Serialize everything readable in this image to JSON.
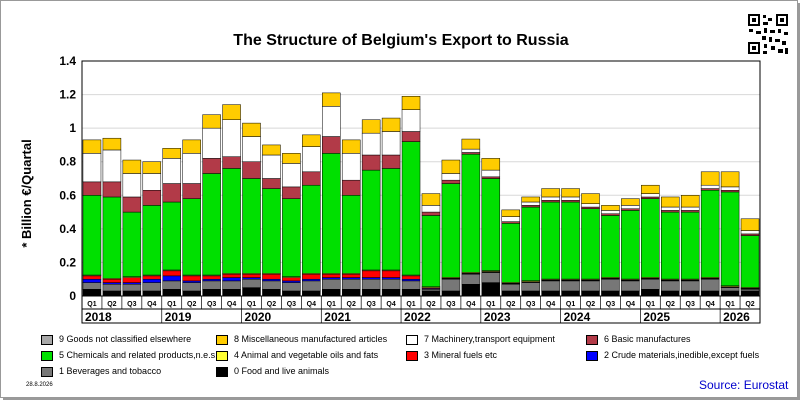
{
  "title": "The Structure of Belgium's Export to Russia",
  "date_stamp": "28.8.2026",
  "source": "Source: Eurostat",
  "colors": {
    "c9": "#a8a8a8",
    "c8": "#ffcc00",
    "c7": "#ffffff",
    "c6": "#b23a48",
    "c5": "#00e000",
    "c4": "#ffff33",
    "c3": "#ff0000",
    "c2": "#0000ff",
    "c1": "#777777",
    "c0": "#000000"
  },
  "legend": [
    {
      "key": "c9",
      "label": "9 Goods not classified elsewhere"
    },
    {
      "key": "c8",
      "label": "8 Miscellaneous manufactured articles"
    },
    {
      "key": "c7",
      "label": "7 Machinery,transport equipment"
    },
    {
      "key": "c6",
      "label": "6 Basic manufactures"
    },
    {
      "key": "c5",
      "label": "5 Chemicals and related products,n.e.s."
    },
    {
      "key": "c4",
      "label": "4 Animal and vegetable oils and fats"
    },
    {
      "key": "c3",
      "label": "3 Mineral fuels etc"
    },
    {
      "key": "c2",
      "label": "2 Crude materials,inedible,except fuels"
    },
    {
      "key": "c1",
      "label": "1 Beverages and tobacco"
    },
    {
      "key": "c0",
      "label": "0 Food and live animals"
    }
  ],
  "chart_data": {
    "type": "bar",
    "stacked": true,
    "title": "The Structure of Belgium's Export to Russia",
    "ylabel": "* Billion €/Quartal",
    "ylim": [
      0,
      1.4
    ],
    "yticks": [
      "0",
      "0.2",
      "0.4",
      "0.6",
      "0.8",
      "1",
      "1.2",
      "1.4"
    ],
    "years": [
      "2018",
      "2019",
      "2020",
      "2021",
      "2022",
      "2023",
      "2024",
      "2025",
      "2026"
    ],
    "categories": [
      "Q1",
      "Q2",
      "Q3",
      "Q4",
      "Q1",
      "Q2",
      "Q3",
      "Q4",
      "Q1",
      "Q2",
      "Q3",
      "Q4",
      "Q1",
      "Q2",
      "Q3",
      "Q4",
      "Q1",
      "Q2",
      "Q3",
      "Q4",
      "Q1",
      "Q2",
      "Q3",
      "Q4",
      "Q1",
      "Q2",
      "Q3",
      "Q4",
      "Q1",
      "Q2",
      "Q3",
      "Q4",
      "Q1",
      "Q2"
    ],
    "series": [
      {
        "key": "c0",
        "name": "0 Food and live animals",
        "values": [
          0.04,
          0.03,
          0.03,
          0.03,
          0.04,
          0.03,
          0.04,
          0.04,
          0.05,
          0.04,
          0.03,
          0.03,
          0.04,
          0.04,
          0.04,
          0.04,
          0.04,
          0.03,
          0.03,
          0.07,
          0.08,
          0.03,
          0.03,
          0.03,
          0.03,
          0.03,
          0.03,
          0.03,
          0.04,
          0.03,
          0.03,
          0.03,
          0.03,
          0.03
        ]
      },
      {
        "key": "c1",
        "name": "1 Beverages and tobacco",
        "values": [
          0.04,
          0.04,
          0.04,
          0.05,
          0.05,
          0.05,
          0.05,
          0.05,
          0.05,
          0.05,
          0.05,
          0.06,
          0.06,
          0.06,
          0.06,
          0.06,
          0.05,
          0.01,
          0.07,
          0.06,
          0.06,
          0.04,
          0.05,
          0.06,
          0.06,
          0.06,
          0.07,
          0.06,
          0.06,
          0.06,
          0.06,
          0.07,
          0.02,
          0.01
        ]
      },
      {
        "key": "c2",
        "name": "2 Crude materials,inedible,except fuels",
        "values": [
          0.02,
          0.01,
          0.01,
          0.02,
          0.03,
          0.01,
          0.01,
          0.02,
          0.01,
          0.01,
          0.01,
          0.01,
          0.01,
          0.01,
          0.01,
          0.01,
          0.01,
          0.005,
          0.003,
          0.003,
          0.003,
          0.003,
          0.003,
          0.003,
          0.003,
          0.003,
          0.003,
          0.003,
          0.003,
          0.003,
          0.003,
          0.003,
          0.003,
          0.003
        ]
      },
      {
        "key": "c3",
        "name": "3 Mineral fuels etc",
        "values": [
          0.02,
          0.02,
          0.03,
          0.02,
          0.03,
          0.03,
          0.02,
          0.02,
          0.02,
          0.03,
          0.02,
          0.03,
          0.02,
          0.02,
          0.04,
          0.04,
          0.02,
          0.005,
          0.003,
          0.003,
          0.003,
          0.003,
          0.003,
          0.003,
          0.003,
          0.003,
          0.003,
          0.003,
          0.003,
          0.003,
          0.003,
          0.003,
          0.003,
          0.003
        ]
      },
      {
        "key": "c4",
        "name": "4 Animal and vegetable oils and fats",
        "values": [
          0.005,
          0.005,
          0.005,
          0.005,
          0.005,
          0.005,
          0.005,
          0.005,
          0.005,
          0.005,
          0.005,
          0.005,
          0.005,
          0.005,
          0.005,
          0.005,
          0.005,
          0.005,
          0.005,
          0.005,
          0.005,
          0.005,
          0.005,
          0.005,
          0.005,
          0.005,
          0.005,
          0.005,
          0.005,
          0.005,
          0.005,
          0.005,
          0.005,
          0.005
        ]
      },
      {
        "key": "c5",
        "name": "5 Chemicals and related products,n.e.s.",
        "values": [
          0.475,
          0.485,
          0.385,
          0.415,
          0.405,
          0.455,
          0.605,
          0.625,
          0.565,
          0.505,
          0.465,
          0.525,
          0.715,
          0.465,
          0.595,
          0.605,
          0.795,
          0.425,
          0.559,
          0.704,
          0.549,
          0.352,
          0.439,
          0.459,
          0.459,
          0.419,
          0.369,
          0.409,
          0.469,
          0.399,
          0.399,
          0.519,
          0.559,
          0.309
        ]
      },
      {
        "key": "c6",
        "name": "6 Basic manufactures",
        "values": [
          0.08,
          0.09,
          0.09,
          0.09,
          0.11,
          0.09,
          0.09,
          0.07,
          0.1,
          0.06,
          0.07,
          0.08,
          0.1,
          0.09,
          0.09,
          0.08,
          0.06,
          0.02,
          0.02,
          0.01,
          0.01,
          0.01,
          0.01,
          0.01,
          0.01,
          0.01,
          0.01,
          0.01,
          0.01,
          0.01,
          0.01,
          0.01,
          0.01,
          0.01
        ]
      },
      {
        "key": "c7",
        "name": "7 Machinery,transport equipment",
        "values": [
          0.17,
          0.19,
          0.14,
          0.1,
          0.15,
          0.18,
          0.18,
          0.22,
          0.15,
          0.14,
          0.14,
          0.15,
          0.18,
          0.16,
          0.13,
          0.14,
          0.13,
          0.04,
          0.04,
          0.02,
          0.04,
          0.03,
          0.02,
          0.02,
          0.02,
          0.02,
          0.02,
          0.02,
          0.02,
          0.02,
          0.02,
          0.02,
          0.02,
          0.02
        ]
      },
      {
        "key": "c8",
        "name": "8 Miscellaneous manufactured articles",
        "values": [
          0.08,
          0.07,
          0.08,
          0.07,
          0.06,
          0.08,
          0.08,
          0.09,
          0.08,
          0.06,
          0.06,
          0.07,
          0.08,
          0.08,
          0.08,
          0.08,
          0.08,
          0.07,
          0.08,
          0.06,
          0.07,
          0.04,
          0.03,
          0.05,
          0.05,
          0.06,
          0.03,
          0.04,
          0.05,
          0.06,
          0.07,
          0.08,
          0.09,
          0.07
        ]
      },
      {
        "key": "c9",
        "name": "9 Goods not classified elsewhere",
        "values": [
          0.0,
          0.0,
          0.0,
          0.0,
          0.0,
          0.0,
          0.0,
          0.0,
          0.0,
          0.0,
          0.0,
          0.0,
          0.0,
          0.0,
          0.0,
          0.0,
          0.0,
          0.0,
          0.0,
          0.0,
          0.0,
          0.0,
          0.0,
          0.0,
          0.0,
          0.0,
          0.0,
          0.0,
          0.0,
          0.0,
          0.0,
          0.0,
          0.0,
          0.0
        ]
      }
    ]
  }
}
